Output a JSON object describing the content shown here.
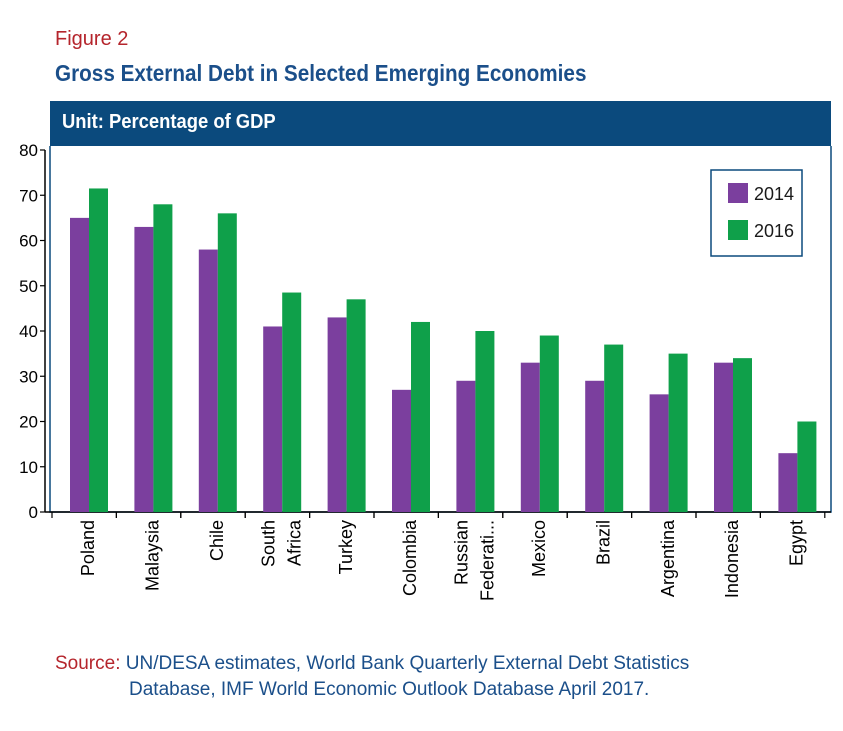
{
  "figure_label": "Figure 2",
  "title": "Gross External Debt in Selected Emerging Economies",
  "unit_label": "Unit: Percentage of GDP",
  "source": {
    "label": "Source:",
    "line1": "UN/DESA estimates, World Bank Quarterly External Debt Statistics",
    "line2": "Database, IMF World Economic Outlook Database April 2017."
  },
  "colors": {
    "series_2014": "#7b3f9e",
    "series_2016": "#0fa04a",
    "banner": "#0b4a7d",
    "frame": "#0b4a7d"
  },
  "chart_data": {
    "type": "bar",
    "categories": [
      "Poland",
      "Malaysia",
      "Chile",
      "South Africa",
      "Turkey",
      "Colombia",
      "Russian Federati...",
      "Mexico",
      "Brazil",
      "Argentina",
      "Indonesia",
      "Egypt"
    ],
    "category_label_lines": [
      [
        "Poland"
      ],
      [
        "Malaysia"
      ],
      [
        "Chile"
      ],
      [
        "South",
        "Africa"
      ],
      [
        "Turkey"
      ],
      [
        "Colombia"
      ],
      [
        "Russian",
        "Federati..."
      ],
      [
        "Mexico"
      ],
      [
        "Brazil"
      ],
      [
        "Argentina"
      ],
      [
        "Indonesia"
      ],
      [
        "Egypt"
      ]
    ],
    "series": [
      {
        "name": "2014",
        "values": [
          65,
          63,
          58,
          41,
          43,
          27,
          29,
          33,
          29,
          26,
          33,
          13
        ]
      },
      {
        "name": "2016",
        "values": [
          71.5,
          68,
          66,
          48.5,
          47,
          42,
          40,
          39,
          37,
          35,
          34,
          20
        ]
      }
    ],
    "ylim": [
      0,
      80
    ],
    "yticks": [
      0,
      10,
      20,
      30,
      40,
      50,
      60,
      70,
      80
    ],
    "xlabel": "",
    "ylabel": "",
    "legend_position": "top-right",
    "grid": false
  }
}
